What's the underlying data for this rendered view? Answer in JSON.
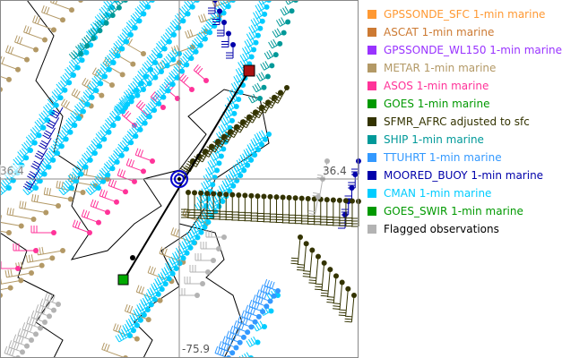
{
  "map": {
    "lat_label": "36.4",
    "lat_label_left": "36.4",
    "lon_label": "-75.9"
  },
  "legend": [
    {
      "label": "GPSSONDE_SFC 1-min marine",
      "color": "#ff9933"
    },
    {
      "label": "ASCAT 1-min marine",
      "color": "#cc7a33"
    },
    {
      "label": "GPSSONDE_WL150 1-min marine",
      "color": "#9933ff"
    },
    {
      "label": "METAR 1-min marine",
      "color": "#b39966"
    },
    {
      "label": "ASOS 1-min marine",
      "color": "#ff3399"
    },
    {
      "label": "GOES 1-min marine",
      "color": "#009900"
    },
    {
      "label": "SFMR_AFRC adjusted to sfc",
      "color": "#333300"
    },
    {
      "label": "SHIP 1-min marine",
      "color": "#009999"
    },
    {
      "label": "TTUHRT 1-min marine",
      "color": "#3399ff"
    },
    {
      "label": "MOORED_BUOY 1-min marine",
      "color": "#0000aa"
    },
    {
      "label": "CMAN 1-min marine",
      "color": "#00ccff"
    },
    {
      "label": "GOES_SWIR 1-min marine",
      "color": "#009900"
    },
    {
      "label": "Flagged observations",
      "color": "#b3b3b3",
      "text_color": "#000000"
    }
  ]
}
